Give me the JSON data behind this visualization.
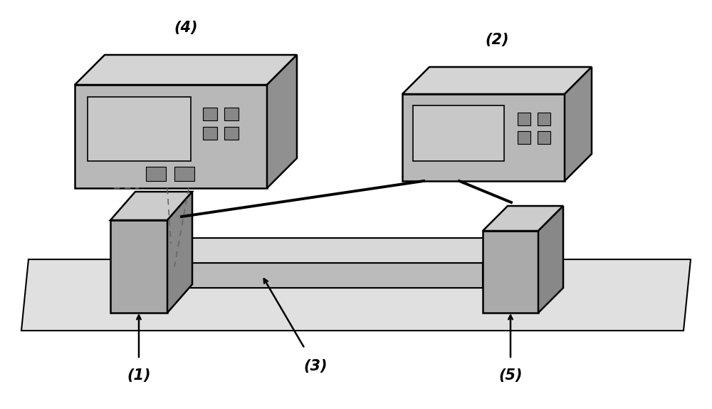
{
  "bg_color": "#ffffff",
  "plate_light": "#e0e0e0",
  "plate_edge": "#000000",
  "electrode_front": "#aaaaaa",
  "electrode_top": "#cccccc",
  "electrode_side": "#888888",
  "sample_front": "#bbbbbb",
  "sample_top": "#d8d8d8",
  "sample_side": "#999999",
  "inst_front": "#b8b8b8",
  "inst_top": "#d4d4d4",
  "inst_side": "#909090",
  "screen_color": "#c8c8c8",
  "btn_color": "#888888",
  "wire_dashed_color": "#666666",
  "wire_bold_color": "#000000",
  "label_4": "(4)",
  "label_2": "(2)",
  "label_1": "(1)",
  "label_3": "(3)",
  "label_5": "(5)",
  "label_fontsize": 15
}
